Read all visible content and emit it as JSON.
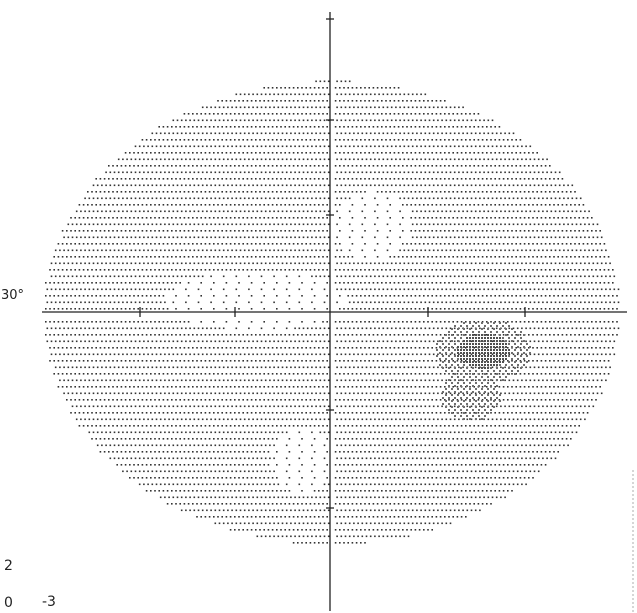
{
  "plot": {
    "type": "visual-field-greyscale",
    "eccentricity_label": "30°",
    "bottom_labels": [
      "2",
      "0",
      "-3"
    ],
    "background": "#ffffff",
    "dot_color": "#333333",
    "defect_color": "#6f6f6f",
    "severe_defect_color": "#4f4f4f"
  }
}
